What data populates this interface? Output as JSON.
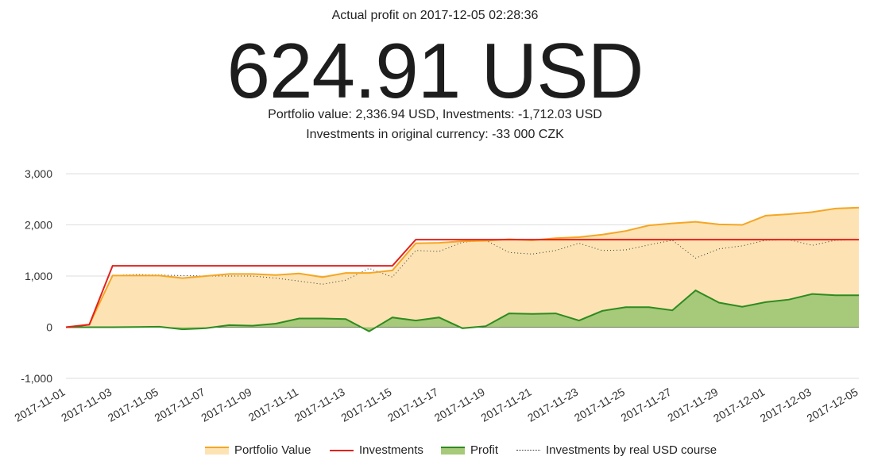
{
  "header": {
    "subtitle": "Actual profit on 2017-12-05 02:28:36",
    "profit": "624.91 USD",
    "summary": "Portfolio value: 2,336.94 USD, Investments: -1,712.03 USD",
    "original_currency": "Investments in original currency: -33 000 CZK"
  },
  "colors": {
    "portfolio_line": "#f5a623",
    "portfolio_fill": "#fde3b4",
    "investments": "#e3211c",
    "profit_line": "#2e8b1f",
    "profit_fill": "#a7c97a",
    "real_usd": "#333333",
    "grid": "#dddddd"
  },
  "chart_data": {
    "type": "line",
    "x": [
      "2017-11-01",
      "2017-11-02",
      "2017-11-03",
      "2017-11-04",
      "2017-11-05",
      "2017-11-06",
      "2017-11-07",
      "2017-11-08",
      "2017-11-09",
      "2017-11-10",
      "2017-11-11",
      "2017-11-12",
      "2017-11-13",
      "2017-11-14",
      "2017-11-15",
      "2017-11-16",
      "2017-11-17",
      "2017-11-18",
      "2017-11-19",
      "2017-11-20",
      "2017-11-21",
      "2017-11-22",
      "2017-11-23",
      "2017-11-24",
      "2017-11-25",
      "2017-11-26",
      "2017-11-27",
      "2017-11-28",
      "2017-11-29",
      "2017-11-30",
      "2017-12-01",
      "2017-12-02",
      "2017-12-03",
      "2017-12-04",
      "2017-12-05"
    ],
    "x_tick_labels": [
      "2017-11-01",
      "2017-11-03",
      "2017-11-05",
      "2017-11-07",
      "2017-11-09",
      "2017-11-11",
      "2017-11-13",
      "2017-11-15",
      "2017-11-17",
      "2017-11-19",
      "2017-11-21",
      "2017-11-23",
      "2017-11-25",
      "2017-11-27",
      "2017-11-29",
      "2017-12-01",
      "2017-12-03",
      "2017-12-05"
    ],
    "y_ticks": [
      3000,
      2000,
      1000,
      0,
      -1000
    ],
    "y_tick_labels": [
      "3,000",
      "2,000",
      "1,000",
      "0",
      "-1,000"
    ],
    "ylim": [
      -1000,
      3000
    ],
    "grid": true,
    "legend_position": "bottom",
    "series": [
      {
        "name": "Portfolio Value",
        "style": "area",
        "values": [
          0,
          50,
          1010,
          1010,
          1010,
          960,
          1000,
          1040,
          1040,
          1020,
          1050,
          980,
          1060,
          1060,
          1110,
          1640,
          1650,
          1680,
          1690,
          1720,
          1700,
          1740,
          1760,
          1810,
          1880,
          1990,
          2030,
          2060,
          2010,
          2000,
          2180,
          2210,
          2250,
          2320,
          2337
        ]
      },
      {
        "name": "Investments",
        "style": "line",
        "values": [
          0,
          50,
          1200,
          1200,
          1200,
          1200,
          1200,
          1200,
          1200,
          1200,
          1200,
          1200,
          1200,
          1200,
          1200,
          1712,
          1712,
          1712,
          1712,
          1712,
          1712,
          1712,
          1712,
          1712,
          1712,
          1712,
          1712,
          1712,
          1712,
          1712,
          1712,
          1712,
          1712,
          1712,
          1712
        ]
      },
      {
        "name": "Profit",
        "style": "area",
        "values": [
          0,
          0,
          0,
          5,
          10,
          -40,
          -20,
          40,
          30,
          70,
          170,
          170,
          160,
          -80,
          190,
          130,
          190,
          -20,
          20,
          270,
          260,
          270,
          130,
          320,
          390,
          390,
          330,
          720,
          480,
          400,
          490,
          540,
          650,
          625,
          625
        ]
      },
      {
        "name": "Investments by real USD course",
        "style": "dotted",
        "values": [
          0,
          40,
          1010,
          1030,
          1020,
          1010,
          1000,
          1000,
          1000,
          960,
          900,
          840,
          920,
          1150,
          980,
          1500,
          1480,
          1660,
          1700,
          1460,
          1430,
          1500,
          1640,
          1500,
          1510,
          1610,
          1700,
          1350,
          1530,
          1590,
          1700,
          1710,
          1600,
          1700,
          1712
        ]
      }
    ]
  }
}
